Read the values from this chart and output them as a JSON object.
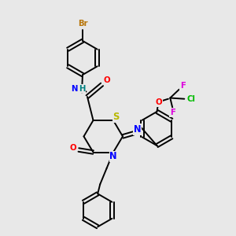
{
  "bg_color": "#e8e8e8",
  "bond_color": "#000000",
  "bond_width": 1.4,
  "atom_colors": {
    "Br": "#b8760b",
    "N": "#0000ff",
    "H": "#008080",
    "O": "#ff0000",
    "S": "#b8b800",
    "F": "#dd00dd",
    "Cl": "#00bb00",
    "C": "#000000"
  },
  "font_size": 6.8,
  "xlim": [
    0,
    10
  ],
  "ylim": [
    0,
    10
  ]
}
